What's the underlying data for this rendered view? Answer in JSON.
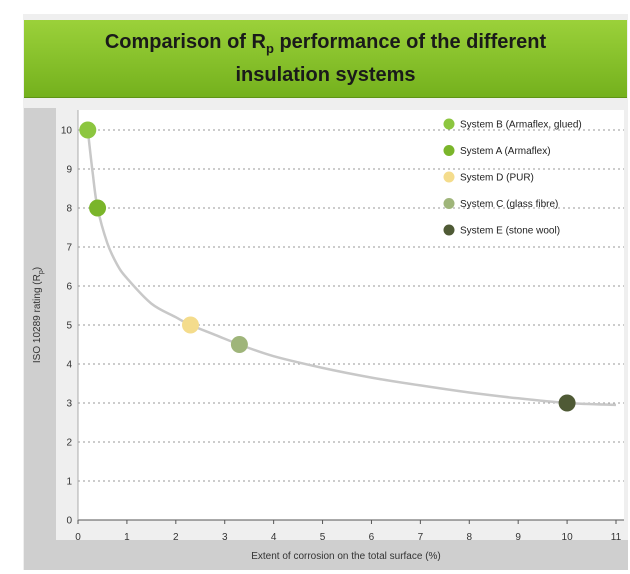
{
  "chart_data": {
    "type": "scatter",
    "title": "Comparison of R",
    "title_sub": "p",
    "title_rest": " performance of the different insulation systems",
    "xlabel": "Extent of corrosion on the total surface (%)",
    "ylabel_main": "ISO 10289 rating (R",
    "ylabel_sub": "p",
    "ylabel_end": ")",
    "xlim": [
      0,
      11
    ],
    "ylim": [
      0,
      10
    ],
    "x_ticks": [
      "0",
      "1",
      "2",
      "3",
      "4",
      "5",
      "6",
      "7",
      "8",
      "9",
      "10",
      "11"
    ],
    "y_ticks": [
      "0",
      "1",
      "2",
      "3",
      "4",
      "5",
      "6",
      "7",
      "8",
      "9",
      "10"
    ],
    "grid": true,
    "legend_position": "top-right",
    "series": [
      {
        "name": "System B (Armaflex, glued)",
        "color": "#8cc63f",
        "x": [
          0.2
        ],
        "y": [
          10
        ]
      },
      {
        "name": "System A (Armaflex)",
        "color": "#7ab52a",
        "x": [
          0.4
        ],
        "y": [
          8
        ]
      },
      {
        "name": "System D (PUR)",
        "color": "#f4dc8c",
        "x": [
          2.3
        ],
        "y": [
          5
        ]
      },
      {
        "name": "System C (glass fibre)",
        "color": "#9fb57a",
        "x": [
          3.3
        ],
        "y": [
          4.5
        ]
      },
      {
        "name": "System E (stone wool)",
        "color": "#4f5a35",
        "x": [
          10
        ],
        "y": [
          3
        ]
      }
    ],
    "trend_curve": {
      "color": "#c8c8c8",
      "x": [
        0.2,
        0.3,
        0.4,
        0.6,
        0.8,
        1,
        1.5,
        2,
        2.3,
        2.8,
        3.3,
        4,
        5,
        6,
        7,
        8,
        9,
        10,
        11
      ],
      "y": [
        10,
        8.9,
        8,
        7.1,
        6.55,
        6.2,
        5.55,
        5.2,
        5,
        4.75,
        4.5,
        4.2,
        3.9,
        3.65,
        3.45,
        3.27,
        3.12,
        3,
        2.95
      ]
    }
  }
}
